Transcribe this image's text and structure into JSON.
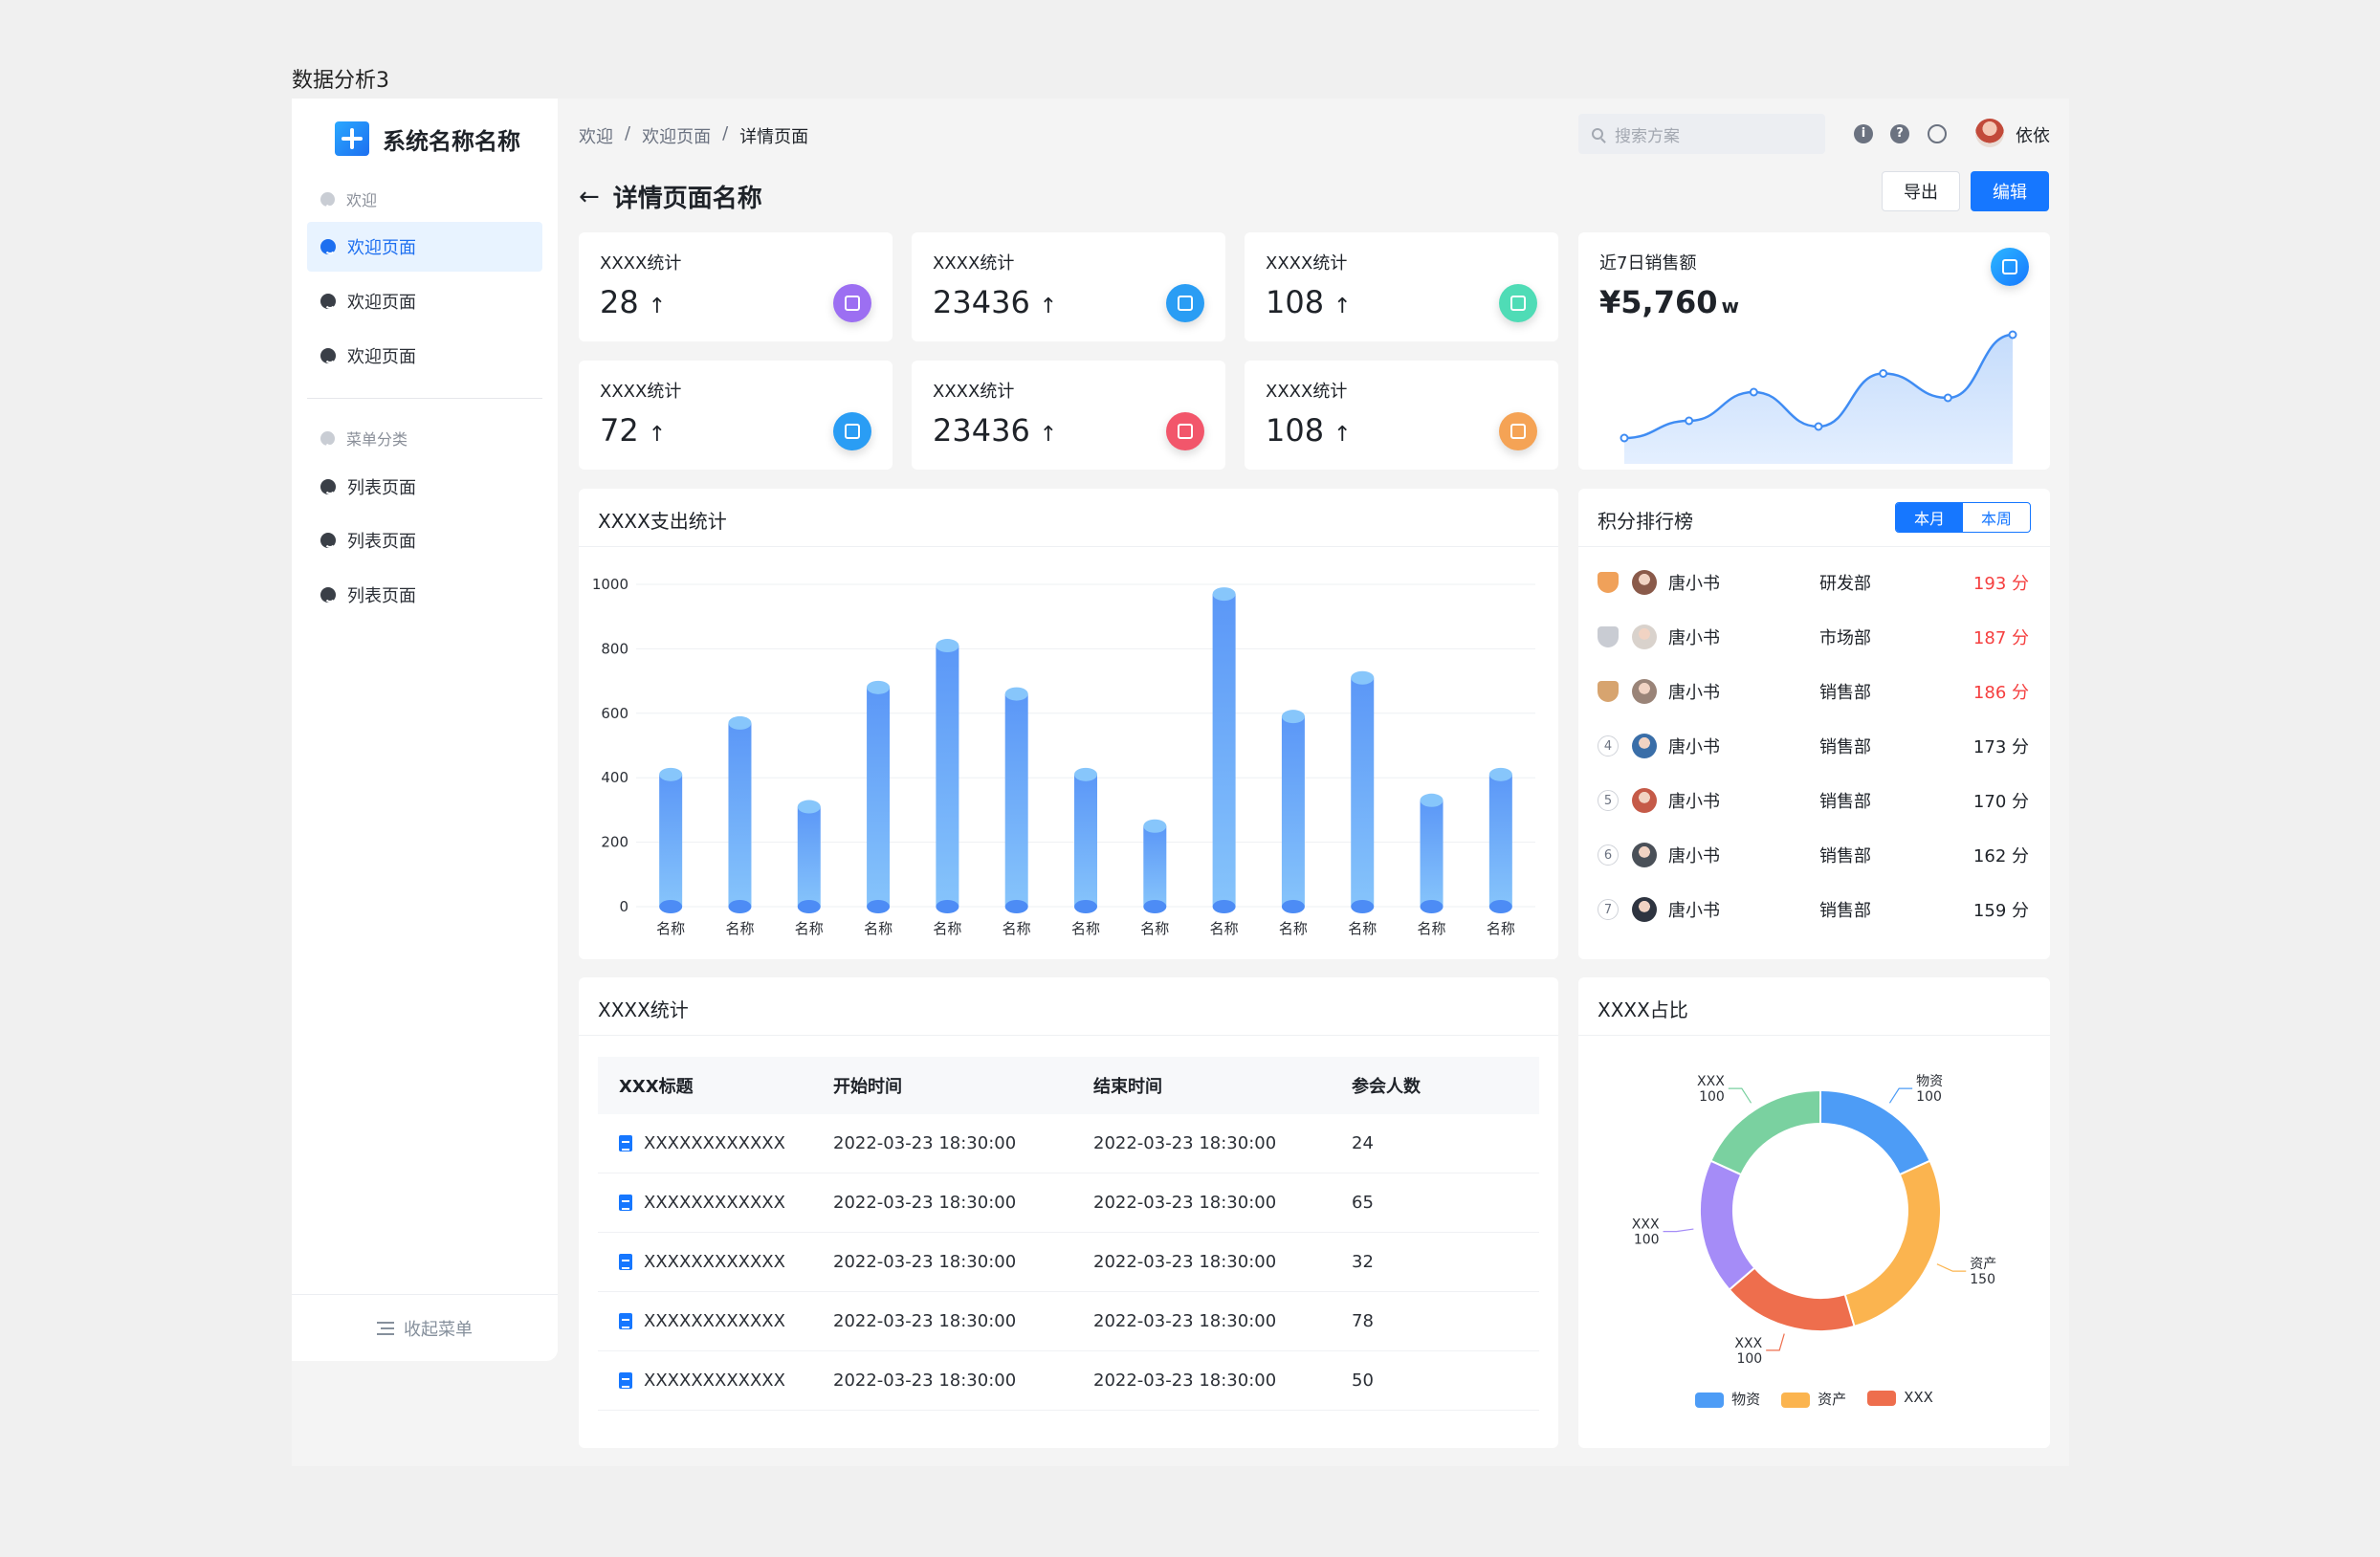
{
  "caption": "数据分析3",
  "app": {
    "logo_text": "系统名称名称"
  },
  "sidebar": {
    "group1": "欢迎",
    "items1": [
      "欢迎页面",
      "欢迎页面",
      "欢迎页面"
    ],
    "group2": "菜单分类",
    "items2": [
      "列表页面",
      "列表页面",
      "列表页面"
    ],
    "collapse": "收起菜单"
  },
  "header": {
    "breadcrumb": [
      "欢迎",
      "欢迎页面",
      "详情页面"
    ],
    "separator": "/",
    "search_placeholder": "搜索方案",
    "user": "依依",
    "page_title": "详情页面名称",
    "export": "导出",
    "edit": "编辑"
  },
  "stats": [
    {
      "label": "XXXX统计",
      "value": "28",
      "color": "#9c6ff2"
    },
    {
      "label": "XXXX统计",
      "value": "23436",
      "color": "#2a9df4"
    },
    {
      "label": "XXXX统计",
      "value": "108",
      "color": "#4fdcb6"
    },
    {
      "label": "XXXX统计",
      "value": "72",
      "color": "#2a9df4"
    },
    {
      "label": "XXXX统计",
      "value": "23436",
      "color": "#f2566b"
    },
    {
      "label": "XXXX统计",
      "value": "108",
      "color": "#f5a355"
    }
  ],
  "sales": {
    "label": "近7日销售额",
    "value": "¥5,760",
    "unit": "w",
    "points": [
      0.1,
      0.22,
      0.42,
      0.18,
      0.55,
      0.38,
      0.82
    ]
  },
  "bar_chart": {
    "title": "XXXX支出统计",
    "chart_data": {
      "type": "bar",
      "categories": [
        "名称",
        "名称",
        "名称",
        "名称",
        "名称",
        "名称",
        "名称",
        "名称",
        "名称",
        "名称",
        "名称",
        "名称",
        "名称"
      ],
      "values": [
        410,
        570,
        310,
        680,
        810,
        660,
        410,
        250,
        970,
        590,
        710,
        330,
        410
      ],
      "ylim": [
        0,
        1000
      ],
      "yticks": [
        0,
        200,
        400,
        600,
        800,
        1000
      ]
    }
  },
  "ranking": {
    "title": "积分排行榜",
    "tabs": [
      "本月",
      "本周"
    ],
    "rows": [
      {
        "rank": "1",
        "name": "唐小书",
        "dept": "研发部",
        "score": "193 分"
      },
      {
        "rank": "2",
        "name": "唐小书",
        "dept": "市场部",
        "score": "187 分"
      },
      {
        "rank": "3",
        "name": "唐小书",
        "dept": "销售部",
        "score": "186 分"
      },
      {
        "rank": "4",
        "name": "唐小书",
        "dept": "销售部",
        "score": "173 分"
      },
      {
        "rank": "5",
        "name": "唐小书",
        "dept": "销售部",
        "score": "170 分"
      },
      {
        "rank": "6",
        "name": "唐小书",
        "dept": "销售部",
        "score": "162 分"
      },
      {
        "rank": "7",
        "name": "唐小书",
        "dept": "销售部",
        "score": "159 分"
      }
    ]
  },
  "table": {
    "title": "XXXX统计",
    "columns": [
      "XXX标题",
      "开始时间",
      "结束时间",
      "参会人数"
    ],
    "rows": [
      [
        "XXXXXXXXXXXX",
        "2022-03-23 18:30:00",
        "2022-03-23 18:30:00",
        "24"
      ],
      [
        "XXXXXXXXXXXX",
        "2022-03-23 18:30:00",
        "2022-03-23 18:30:00",
        "65"
      ],
      [
        "XXXXXXXXXXXX",
        "2022-03-23 18:30:00",
        "2022-03-23 18:30:00",
        "32"
      ],
      [
        "XXXXXXXXXXXX",
        "2022-03-23 18:30:00",
        "2022-03-23 18:30:00",
        "78"
      ],
      [
        "XXXXXXXXXXXX",
        "2022-03-23 18:30:00",
        "2022-03-23 18:30:00",
        "50"
      ]
    ]
  },
  "donut": {
    "title": "XXXX占比",
    "chart_data": {
      "type": "pie",
      "slices": [
        {
          "name": "物资",
          "value": 100,
          "color": "#4d9cf6"
        },
        {
          "name": "资产",
          "value": 150,
          "color": "#fbb44f"
        },
        {
          "name": "XXX",
          "value": 100,
          "color": "#ee6e4d"
        },
        {
          "name": "XXX",
          "value": 100,
          "color": "#a58cf7"
        },
        {
          "name": "XXX",
          "value": 100,
          "color": "#7ad1a0"
        }
      ],
      "legend": [
        "物资",
        "资产",
        "XXX"
      ]
    }
  }
}
